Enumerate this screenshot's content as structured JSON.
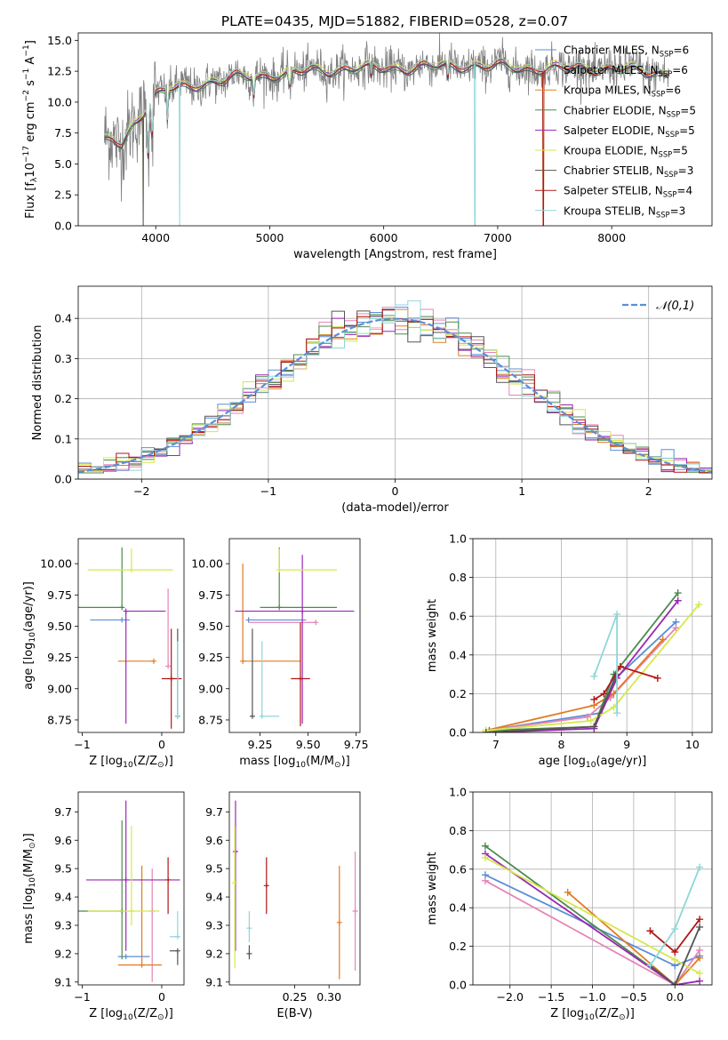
{
  "figure_title": "PLATE=0435, MJD=51882, FIBERID=0528, z=0.07",
  "colors": {
    "Chabrier MILES": "#5b8ed6",
    "Salpeter MILES": "#e684b7",
    "Kroupa MILES": "#e07b24",
    "Chabrier ELODIE": "#4c8a4c",
    "Salpeter ELODIE": "#9b27b5",
    "Kroupa ELODIE": "#d6e84a",
    "Chabrier STELIB": "#555555",
    "Salpeter STELIB": "#b01818",
    "Kroupa STELIB": "#8fd6d8",
    "data": "#808080",
    "normal": "#5b8ed6"
  },
  "legend_entries": [
    "Chabrier MILES, N_SSP=6",
    "Salpeter MILES, N_SSP=6",
    "Kroupa MILES, N_SSP=6",
    "Chabrier ELODIE, N_SSP=5",
    "Salpeter ELODIE, N_SSP=5",
    "Kroupa ELODIE, N_SSP=5",
    "Chabrier STELIB, N_SSP=3",
    "Salpeter STELIB, N_SSP=4",
    "Kroupa STELIB, N_SSP=3"
  ],
  "chart_data": [
    {
      "id": "spectrum",
      "type": "line",
      "title": "PLATE=0435, MJD=51882, FIBERID=0528, z=0.07",
      "xlabel": "wavelength [Angstrom, rest frame]",
      "ylabel": "Flux [fλ10^-17 erg cm^-2 s^-1 A^-1]",
      "xlim": [
        3320,
        8880
      ],
      "ylim": [
        0,
        15.6
      ],
      "xticks": [
        4000,
        5000,
        6000,
        7000,
        8000
      ],
      "yticks": [
        0.0,
        2.5,
        5.0,
        7.5,
        10.0,
        12.5,
        15.0
      ],
      "legend": "upper right",
      "continuum": {
        "x": [
          3550,
          3620,
          3700,
          3800,
          3900,
          4000,
          4100,
          4300,
          4500,
          4700,
          5000,
          5300,
          5600,
          6000,
          6300,
          6600,
          7000,
          7400,
          7800,
          8200,
          8500
        ],
        "y": [
          6.8,
          7.0,
          6.5,
          8.2,
          9.5,
          10.6,
          11.0,
          11.3,
          11.7,
          12.0,
          12.2,
          12.5,
          12.7,
          12.8,
          12.8,
          13.0,
          12.9,
          12.7,
          12.8,
          12.6,
          12.3
        ]
      }
    },
    {
      "id": "residuals",
      "type": "step",
      "xlabel": "(data-model)/error",
      "ylabel": "Normed distribution",
      "xlim": [
        -2.5,
        2.5
      ],
      "ylim": [
        0,
        0.48
      ],
      "xticks": [
        -2,
        -1,
        0,
        1,
        2
      ],
      "yticks": [
        0.0,
        0.1,
        0.2,
        0.3,
        0.4
      ],
      "grid": true,
      "legend": "upper right",
      "normal_label": "N(0,1)",
      "bin_width": 0.1
    },
    {
      "id": "age_vs_Z",
      "type": "errorbar",
      "xlabel": "Z [log10(Z/Z⊙)]",
      "ylabel": "age [log10(age/yr)]",
      "xlim": [
        -1.05,
        0.28
      ],
      "ylim": [
        8.65,
        10.2
      ],
      "xticks": [
        -1,
        0
      ],
      "yticks": [
        8.75,
        9.0,
        9.25,
        9.5,
        9.75,
        10.0
      ],
      "points": [
        {
          "model": "Chabrier MILES",
          "x": -0.5,
          "y": 9.55,
          "xerr": [
            0.4,
            0.1
          ],
          "yerr": [
            0.0,
            0.0
          ]
        },
        {
          "model": "Salpeter MILES",
          "x": 0.08,
          "y": 9.18,
          "xerr": [
            0.0,
            0.0
          ],
          "yerr": [
            0.0,
            0.62
          ]
        },
        {
          "model": "Kroupa MILES",
          "x": -0.1,
          "y": 9.22,
          "xerr": [
            0.45,
            0.0
          ],
          "yerr": [
            0.0,
            0.0
          ]
        },
        {
          "model": "Chabrier ELODIE",
          "x": -0.5,
          "y": 9.65,
          "xerr": [
            0.55,
            0.0
          ],
          "yerr": [
            0.0,
            0.48
          ]
        },
        {
          "model": "Salpeter ELODIE",
          "x": -0.45,
          "y": 9.62,
          "xerr": [
            0.0,
            0.5
          ],
          "yerr": [
            0.9,
            0.0
          ]
        },
        {
          "model": "Kroupa ELODIE",
          "x": -0.38,
          "y": 9.95,
          "xerr": [
            0.55,
            0.52
          ],
          "yerr": [
            0.0,
            0.17
          ]
        },
        {
          "model": "Chabrier STELIB",
          "x": 0.2,
          "y": 8.78,
          "xerr": [
            0.0,
            0.0
          ],
          "yerr": [
            0.0,
            0.7
          ]
        },
        {
          "model": "Salpeter STELIB",
          "x": 0.12,
          "y": 9.08,
          "xerr": [
            0.12,
            0.13
          ],
          "yerr": [
            0.4,
            0.4
          ]
        },
        {
          "model": "Kroupa STELIB",
          "x": 0.2,
          "y": 8.78,
          "xerr": [
            0.0,
            0.0
          ],
          "yerr": [
            0.0,
            0.6
          ]
        }
      ]
    },
    {
      "id": "age_vs_mass",
      "type": "errorbar",
      "xlabel": "mass [log10(M/M⊙)]",
      "ylabel": "",
      "xlim": [
        9.09,
        9.77
      ],
      "ylim": [
        8.65,
        10.2
      ],
      "xticks": [
        9.25,
        9.5,
        9.75
      ],
      "yticks": [
        8.75,
        9.0,
        9.25,
        9.5,
        9.75,
        10.0
      ],
      "points": [
        {
          "model": "Chabrier MILES",
          "x": 9.19,
          "y": 9.55,
          "xerr": [
            0.0,
            0.3
          ],
          "yerr": [
            0.0,
            0.0
          ]
        },
        {
          "model": "Salpeter MILES",
          "x": 9.54,
          "y": 9.53,
          "xerr": [
            0.35,
            0.0
          ],
          "yerr": [
            0.0,
            0.0
          ]
        },
        {
          "model": "Kroupa MILES",
          "x": 9.16,
          "y": 9.22,
          "xerr": [
            0.0,
            0.3
          ],
          "yerr": [
            0.0,
            0.78
          ]
        },
        {
          "model": "Chabrier ELODIE",
          "x": 9.35,
          "y": 9.65,
          "xerr": [
            0.1,
            0.3
          ],
          "yerr": [
            0.0,
            0.48
          ]
        },
        {
          "model": "Salpeter ELODIE",
          "x": 9.47,
          "y": 9.62,
          "xerr": [
            0.35,
            0.27
          ],
          "yerr": [
            0.9,
            0.45
          ]
        },
        {
          "model": "Kroupa ELODIE",
          "x": 9.35,
          "y": 9.95,
          "xerr": [
            0.0,
            0.3
          ],
          "yerr": [
            0.0,
            0.17
          ]
        },
        {
          "model": "Chabrier STELIB",
          "x": 9.21,
          "y": 8.78,
          "xerr": [
            0.0,
            0.0
          ],
          "yerr": [
            0.0,
            0.7
          ]
        },
        {
          "model": "Salpeter STELIB",
          "x": 9.46,
          "y": 9.08,
          "xerr": [
            0.05,
            0.05
          ],
          "yerr": [
            0.38,
            0.45
          ]
        },
        {
          "model": "Kroupa STELIB",
          "x": 9.26,
          "y": 8.78,
          "xerr": [
            0.0,
            0.09
          ],
          "yerr": [
            0.0,
            0.6
          ]
        }
      ]
    },
    {
      "id": "weights_vs_age",
      "type": "line",
      "xlabel": "age [log10(age/yr)]",
      "ylabel": "mass weight",
      "xlim": [
        6.65,
        10.3
      ],
      "ylim": [
        0,
        1.0
      ],
      "xticks": [
        7,
        8,
        9,
        10
      ],
      "yticks": [
        0.0,
        0.2,
        0.4,
        0.6,
        0.8,
        1.0
      ],
      "grid": true,
      "series": [
        {
          "model": "Chabrier MILES",
          "x": [
            6.85,
            8.6,
            8.8,
            9.75
          ],
          "y": [
            0.01,
            0.1,
            0.27,
            0.57
          ]
        },
        {
          "model": "Salpeter MILES",
          "x": [
            6.85,
            8.4,
            8.75,
            9.75
          ],
          "y": [
            0.01,
            0.08,
            0.18,
            0.54
          ]
        },
        {
          "model": "Kroupa MILES",
          "x": [
            6.85,
            8.5,
            8.8,
            9.55
          ],
          "y": [
            0.01,
            0.14,
            0.2,
            0.48
          ]
        },
        {
          "model": "Chabrier ELODIE",
          "x": [
            6.9,
            8.5,
            8.8,
            9.78
          ],
          "y": [
            0.01,
            0.03,
            0.3,
            0.72
          ]
        },
        {
          "model": "Salpeter ELODIE",
          "x": [
            6.9,
            8.5,
            8.85,
            9.78
          ],
          "y": [
            0.0,
            0.02,
            0.28,
            0.68
          ]
        },
        {
          "model": "Kroupa ELODIE",
          "x": [
            6.85,
            8.45,
            8.8,
            10.1
          ],
          "y": [
            0.01,
            0.06,
            0.13,
            0.66
          ]
        },
        {
          "model": "Chabrier STELIB",
          "x": [
            6.85,
            8.5,
            8.85
          ],
          "y": [
            0.0,
            0.03,
            0.3
          ]
        },
        {
          "model": "Salpeter STELIB",
          "x": [
            8.5,
            8.65,
            8.9,
            9.47
          ],
          "y": [
            0.17,
            0.2,
            0.34,
            0.28
          ]
        },
        {
          "model": "Kroupa STELIB",
          "x": [
            8.5,
            8.85,
            8.85
          ],
          "y": [
            0.29,
            0.61,
            0.1
          ]
        }
      ]
    },
    {
      "id": "mass_vs_Z",
      "type": "errorbar",
      "xlabel": "Z [log10(Z/Z⊙)]",
      "ylabel": "mass [log10(M/M⊙)]",
      "xlim": [
        -1.05,
        0.28
      ],
      "ylim": [
        9.09,
        9.77
      ],
      "xticks": [
        -1,
        0
      ],
      "yticks": [
        9.1,
        9.2,
        9.3,
        9.4,
        9.5,
        9.6,
        9.7
      ],
      "points": [
        {
          "model": "Chabrier MILES",
          "x": -0.45,
          "y": 9.19,
          "xerr": [
            0.1,
            0.3
          ],
          "yerr": [
            0.0,
            0.0
          ]
        },
        {
          "model": "Salpeter MILES",
          "x": -0.12,
          "y": 9.35,
          "xerr": [
            0.0,
            0.0
          ],
          "yerr": [
            0.25,
            0.15
          ]
        },
        {
          "model": "Kroupa MILES",
          "x": -0.25,
          "y": 9.16,
          "xerr": [
            0.3,
            0.25
          ],
          "yerr": [
            0.0,
            0.35
          ]
        },
        {
          "model": "Chabrier ELODIE",
          "x": -0.5,
          "y": 9.35,
          "xerr": [
            0.55,
            0.0
          ],
          "yerr": [
            0.17,
            0.32
          ]
        },
        {
          "model": "Salpeter ELODIE",
          "x": -0.45,
          "y": 9.46,
          "xerr": [
            0.5,
            0.68
          ],
          "yerr": [
            0.25,
            0.28
          ]
        },
        {
          "model": "Kroupa ELODIE",
          "x": -0.38,
          "y": 9.35,
          "xerr": [
            0.55,
            0.35
          ],
          "yerr": [
            0.05,
            0.3
          ]
        },
        {
          "model": "Chabrier STELIB",
          "x": 0.2,
          "y": 9.21,
          "xerr": [
            0.1,
            0.0
          ],
          "yerr": [
            0.05,
            0.0
          ]
        },
        {
          "model": "Salpeter STELIB",
          "x": 0.08,
          "y": 9.46,
          "xerr": [
            0.0,
            0.0
          ],
          "yerr": [
            0.12,
            0.08
          ]
        },
        {
          "model": "Kroupa STELIB",
          "x": 0.2,
          "y": 9.26,
          "xerr": [
            0.1,
            0.0
          ],
          "yerr": [
            0.0,
            0.09
          ]
        }
      ]
    },
    {
      "id": "mass_vs_EBV",
      "type": "errorbar",
      "xlabel": "E(B-V)",
      "ylabel": "",
      "xlim": [
        0.155,
        0.345
      ],
      "ylim": [
        9.09,
        9.77
      ],
      "xticks": [
        0.25,
        0.3
      ],
      "yticks": [
        9.1,
        9.2,
        9.3,
        9.4,
        9.5,
        9.6,
        9.7
      ],
      "points": [
        {
          "model": "Salpeter ELODIE",
          "x": 0.164,
          "y": 9.56,
          "xerr": [
            0.0,
            0.0
          ],
          "yerr": [
            0.35,
            0.18
          ]
        },
        {
          "model": "Kroupa ELODIE",
          "x": 0.163,
          "y": 9.45,
          "xerr": [
            0.0,
            0.0
          ],
          "yerr": [
            0.3,
            0.2
          ]
        },
        {
          "model": "Kroupa STELIB",
          "x": 0.184,
          "y": 9.29,
          "xerr": [
            0.0,
            0.0
          ],
          "yerr": [
            0.05,
            0.06
          ]
        },
        {
          "model": "Chabrier STELIB",
          "x": 0.184,
          "y": 9.2,
          "xerr": [
            0.0,
            0.0
          ],
          "yerr": [
            0.02,
            0.03
          ]
        },
        {
          "model": "Salpeter STELIB",
          "x": 0.209,
          "y": 9.44,
          "xerr": [
            0.0,
            0.0
          ],
          "yerr": [
            0.1,
            0.1
          ]
        },
        {
          "model": "Kroupa MILES",
          "x": 0.315,
          "y": 9.31,
          "xerr": [
            0.0,
            0.0
          ],
          "yerr": [
            0.2,
            0.2
          ]
        },
        {
          "model": "Salpeter MILES",
          "x": 0.338,
          "y": 9.35,
          "xerr": [
            0.0,
            0.0
          ],
          "yerr": [
            0.21,
            0.21
          ]
        }
      ]
    },
    {
      "id": "weights_vs_Z",
      "type": "line",
      "xlabel": "Z [log10(Z/Z⊙)]",
      "ylabel": "mass weight",
      "xlim": [
        -2.45,
        0.45
      ],
      "ylim": [
        0,
        1.0
      ],
      "xticks": [
        -2.0,
        -1.5,
        -1.0,
        -0.5,
        0.0
      ],
      "yticks": [
        0.0,
        0.2,
        0.4,
        0.6,
        0.8,
        1.0
      ],
      "grid": true,
      "series": [
        {
          "model": "Chabrier MILES",
          "x": [
            -2.3,
            0.0,
            0.3
          ],
          "y": [
            0.57,
            0.1,
            0.15
          ]
        },
        {
          "model": "Salpeter MILES",
          "x": [
            -2.3,
            0.0,
            0.3
          ],
          "y": [
            0.54,
            0.0,
            0.18
          ]
        },
        {
          "model": "Kroupa MILES",
          "x": [
            -1.3,
            0.0,
            0.3
          ],
          "y": [
            0.48,
            0.0,
            0.14
          ]
        },
        {
          "model": "Chabrier ELODIE",
          "x": [
            -2.3,
            0.0
          ],
          "y": [
            0.72,
            0.0
          ]
        },
        {
          "model": "Salpeter ELODIE",
          "x": [
            -2.3,
            0.0,
            0.3
          ],
          "y": [
            0.68,
            0.0,
            0.02
          ]
        },
        {
          "model": "Kroupa ELODIE",
          "x": [
            -2.3,
            0.0,
            0.3
          ],
          "y": [
            0.66,
            0.13,
            0.06
          ]
        },
        {
          "model": "Chabrier STELIB",
          "x": [
            -0.3,
            0.0,
            0.3
          ],
          "y": [
            0.1,
            0.0,
            0.3
          ]
        },
        {
          "model": "Salpeter STELIB",
          "x": [
            -0.3,
            0.0,
            0.3
          ],
          "y": [
            0.28,
            0.17,
            0.34
          ]
        },
        {
          "model": "Kroupa STELIB",
          "x": [
            -0.3,
            0.0,
            0.3
          ],
          "y": [
            0.1,
            0.29,
            0.61
          ]
        }
      ]
    }
  ]
}
